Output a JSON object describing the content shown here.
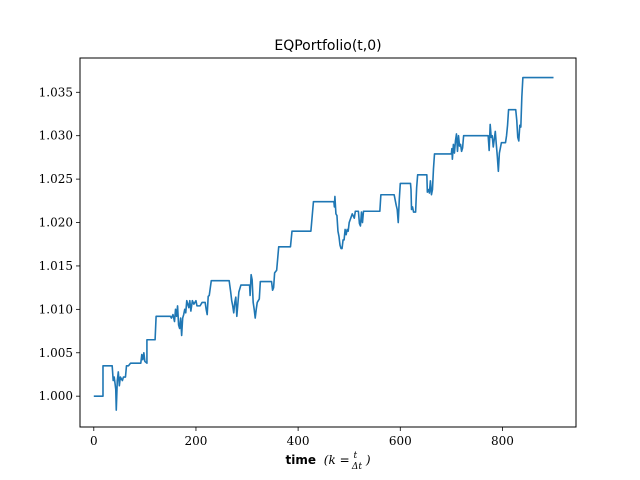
{
  "chart_data": {
    "type": "line",
    "title": "EQPortfolio(t,0)",
    "xlabel": {
      "bold": "time",
      "math_prefix": "(k = ",
      "frac_num": "t",
      "frac_den": "Δt",
      "math_suffix": ")"
    },
    "ylabel": "",
    "xlim": [
      -27,
      944
    ],
    "ylim": [
      0.99645,
      1.03895
    ],
    "xticks": [
      0,
      200,
      400,
      600,
      800
    ],
    "xtick_labels": [
      "0",
      "200",
      "400",
      "600",
      "800"
    ],
    "yticks": [
      1.0,
      1.005,
      1.01,
      1.015,
      1.02,
      1.025,
      1.03,
      1.035
    ],
    "ytick_labels": [
      "1.000",
      "1.005",
      "1.010",
      "1.015",
      "1.020",
      "1.025",
      "1.030",
      "1.035"
    ],
    "grid": false,
    "series": [
      {
        "color": "#1f77b4",
        "points": [
          [
            0,
            1.0
          ],
          [
            18,
            1.0
          ],
          [
            18,
            1.0035
          ],
          [
            36,
            1.0035
          ],
          [
            38,
            1.0018
          ],
          [
            40,
            1.0022
          ],
          [
            43,
            1.0008
          ],
          [
            44,
            0.9984
          ],
          [
            46,
            1.0018
          ],
          [
            48,
            1.0028
          ],
          [
            50,
            1.0012
          ],
          [
            52,
            1.0022
          ],
          [
            56,
            1.0018
          ],
          [
            58,
            1.0022
          ],
          [
            62,
            1.0022
          ],
          [
            64,
            1.0035
          ],
          [
            68,
            1.0035
          ],
          [
            72,
            1.0038
          ],
          [
            92,
            1.0038
          ],
          [
            94,
            1.0048
          ],
          [
            96,
            1.0042
          ],
          [
            98,
            1.005
          ],
          [
            100,
            1.004
          ],
          [
            104,
            1.0038
          ],
          [
            104,
            1.0065
          ],
          [
            120,
            1.0065
          ],
          [
            122,
            1.0092
          ],
          [
            150,
            1.0092
          ],
          [
            152,
            1.009
          ],
          [
            155,
            1.0094
          ],
          [
            158,
            1.0086
          ],
          [
            160,
            1.01
          ],
          [
            162,
            1.0092
          ],
          [
            164,
            1.0104
          ],
          [
            166,
            1.0082
          ],
          [
            168,
            1.0078
          ],
          [
            170,
            1.009
          ],
          [
            172,
            1.007
          ],
          [
            174,
            1.009
          ],
          [
            176,
            1.0094
          ],
          [
            178,
            1.01
          ],
          [
            180,
            1.0096
          ],
          [
            182,
            1.011
          ],
          [
            184,
            1.0106
          ],
          [
            186,
            1.0102
          ],
          [
            188,
            1.011
          ],
          [
            190,
            1.0098
          ],
          [
            193,
            1.011
          ],
          [
            196,
            1.0106
          ],
          [
            200,
            1.011
          ],
          [
            202,
            1.0104
          ],
          [
            208,
            1.0104
          ],
          [
            212,
            1.0108
          ],
          [
            218,
            1.0108
          ],
          [
            220,
            1.01
          ],
          [
            222,
            1.0094
          ],
          [
            224,
            1.0115
          ],
          [
            226,
            1.0116
          ],
          [
            230,
            1.0133
          ],
          [
            265,
            1.0133
          ],
          [
            268,
            1.012
          ],
          [
            270,
            1.011
          ],
          [
            272,
            1.0104
          ],
          [
            274,
            1.0096
          ],
          [
            276,
            1.0108
          ],
          [
            278,
            1.0114
          ],
          [
            280,
            1.0092
          ],
          [
            284,
            1.012
          ],
          [
            288,
            1.0128
          ],
          [
            305,
            1.0128
          ],
          [
            306,
            1.0116
          ],
          [
            308,
            1.014
          ],
          [
            310,
            1.0134
          ],
          [
            312,
            1.0108
          ],
          [
            314,
            1.01
          ],
          [
            316,
            1.009
          ],
          [
            318,
            1.01
          ],
          [
            320,
            1.0108
          ],
          [
            324,
            1.0112
          ],
          [
            326,
            1.0132
          ],
          [
            348,
            1.0132
          ],
          [
            350,
            1.0122
          ],
          [
            352,
            1.0125
          ],
          [
            354,
            1.0142
          ],
          [
            358,
            1.0145
          ],
          [
            362,
            1.0172
          ],
          [
            385,
            1.0172
          ],
          [
            388,
            1.019
          ],
          [
            425,
            1.019
          ],
          [
            430,
            1.0224
          ],
          [
            470,
            1.0224
          ],
          [
            471,
            1.0218
          ],
          [
            472,
            1.023
          ],
          [
            474,
            1.021
          ],
          [
            476,
            1.0208
          ],
          [
            478,
            1.019
          ],
          [
            480,
            1.0184
          ],
          [
            482,
            1.0174
          ],
          [
            484,
            1.017
          ],
          [
            486,
            1.017
          ],
          [
            488,
            1.018
          ],
          [
            490,
            1.018
          ],
          [
            492,
            1.0192
          ],
          [
            494,
            1.0186
          ],
          [
            496,
            1.0192
          ],
          [
            498,
            1.019
          ],
          [
            500,
            1.02
          ],
          [
            503,
            1.0205
          ],
          [
            506,
            1.021
          ],
          [
            510,
            1.0205
          ],
          [
            512,
            1.0213
          ],
          [
            518,
            1.0213
          ],
          [
            520,
            1.0199
          ],
          [
            522,
            1.0196
          ],
          [
            524,
            1.0212
          ],
          [
            526,
            1.02
          ],
          [
            528,
            1.0213
          ],
          [
            560,
            1.0213
          ],
          [
            562,
            1.0232
          ],
          [
            588,
            1.0232
          ],
          [
            590,
            1.0226
          ],
          [
            592,
            1.022
          ],
          [
            594,
            1.0215
          ],
          [
            596,
            1.02
          ],
          [
            598,
            1.0226
          ],
          [
            600,
            1.0245
          ],
          [
            620,
            1.0245
          ],
          [
            621,
            1.0238
          ],
          [
            622,
            1.0215
          ],
          [
            624,
            1.0218
          ],
          [
            626,
            1.0212
          ],
          [
            630,
            1.0212
          ],
          [
            632,
            1.024
          ],
          [
            634,
            1.0255
          ],
          [
            652,
            1.0255
          ],
          [
            653,
            1.0235
          ],
          [
            655,
            1.0238
          ],
          [
            657,
            1.0234
          ],
          [
            659,
            1.0248
          ],
          [
            661,
            1.0232
          ],
          [
            663,
            1.0238
          ],
          [
            665,
            1.0262
          ],
          [
            667,
            1.0279
          ],
          [
            700,
            1.0279
          ],
          [
            701,
            1.0285
          ],
          [
            702,
            1.0273
          ],
          [
            704,
            1.029
          ],
          [
            706,
            1.028
          ],
          [
            708,
            1.0294
          ],
          [
            710,
            1.0302
          ],
          [
            712,
            1.0282
          ],
          [
            714,
            1.03
          ],
          [
            716,
            1.0288
          ],
          [
            718,
            1.029
          ],
          [
            720,
            1.0282
          ],
          [
            722,
            1.0286
          ],
          [
            724,
            1.03
          ],
          [
            772,
            1.03
          ],
          [
            773,
            1.0292
          ],
          [
            774,
            1.0283
          ],
          [
            776,
            1.0313
          ],
          [
            778,
            1.0298
          ],
          [
            780,
            1.03
          ],
          [
            782,
            1.0287
          ],
          [
            784,
            1.0296
          ],
          [
            786,
            1.0305
          ],
          [
            788,
            1.029
          ],
          [
            790,
            1.0276
          ],
          [
            792,
            1.0259
          ],
          [
            794,
            1.028
          ],
          [
            796,
            1.0286
          ],
          [
            798,
            1.0292
          ],
          [
            806,
            1.0292
          ],
          [
            808,
            1.03
          ],
          [
            810,
            1.0312
          ],
          [
            812,
            1.033
          ],
          [
            826,
            1.033
          ],
          [
            828,
            1.0318
          ],
          [
            830,
            1.0298
          ],
          [
            832,
            1.0294
          ],
          [
            834,
            1.0312
          ],
          [
            836,
            1.031
          ],
          [
            838,
            1.0345
          ],
          [
            840,
            1.0367
          ],
          [
            900,
            1.0367
          ]
        ]
      }
    ]
  }
}
